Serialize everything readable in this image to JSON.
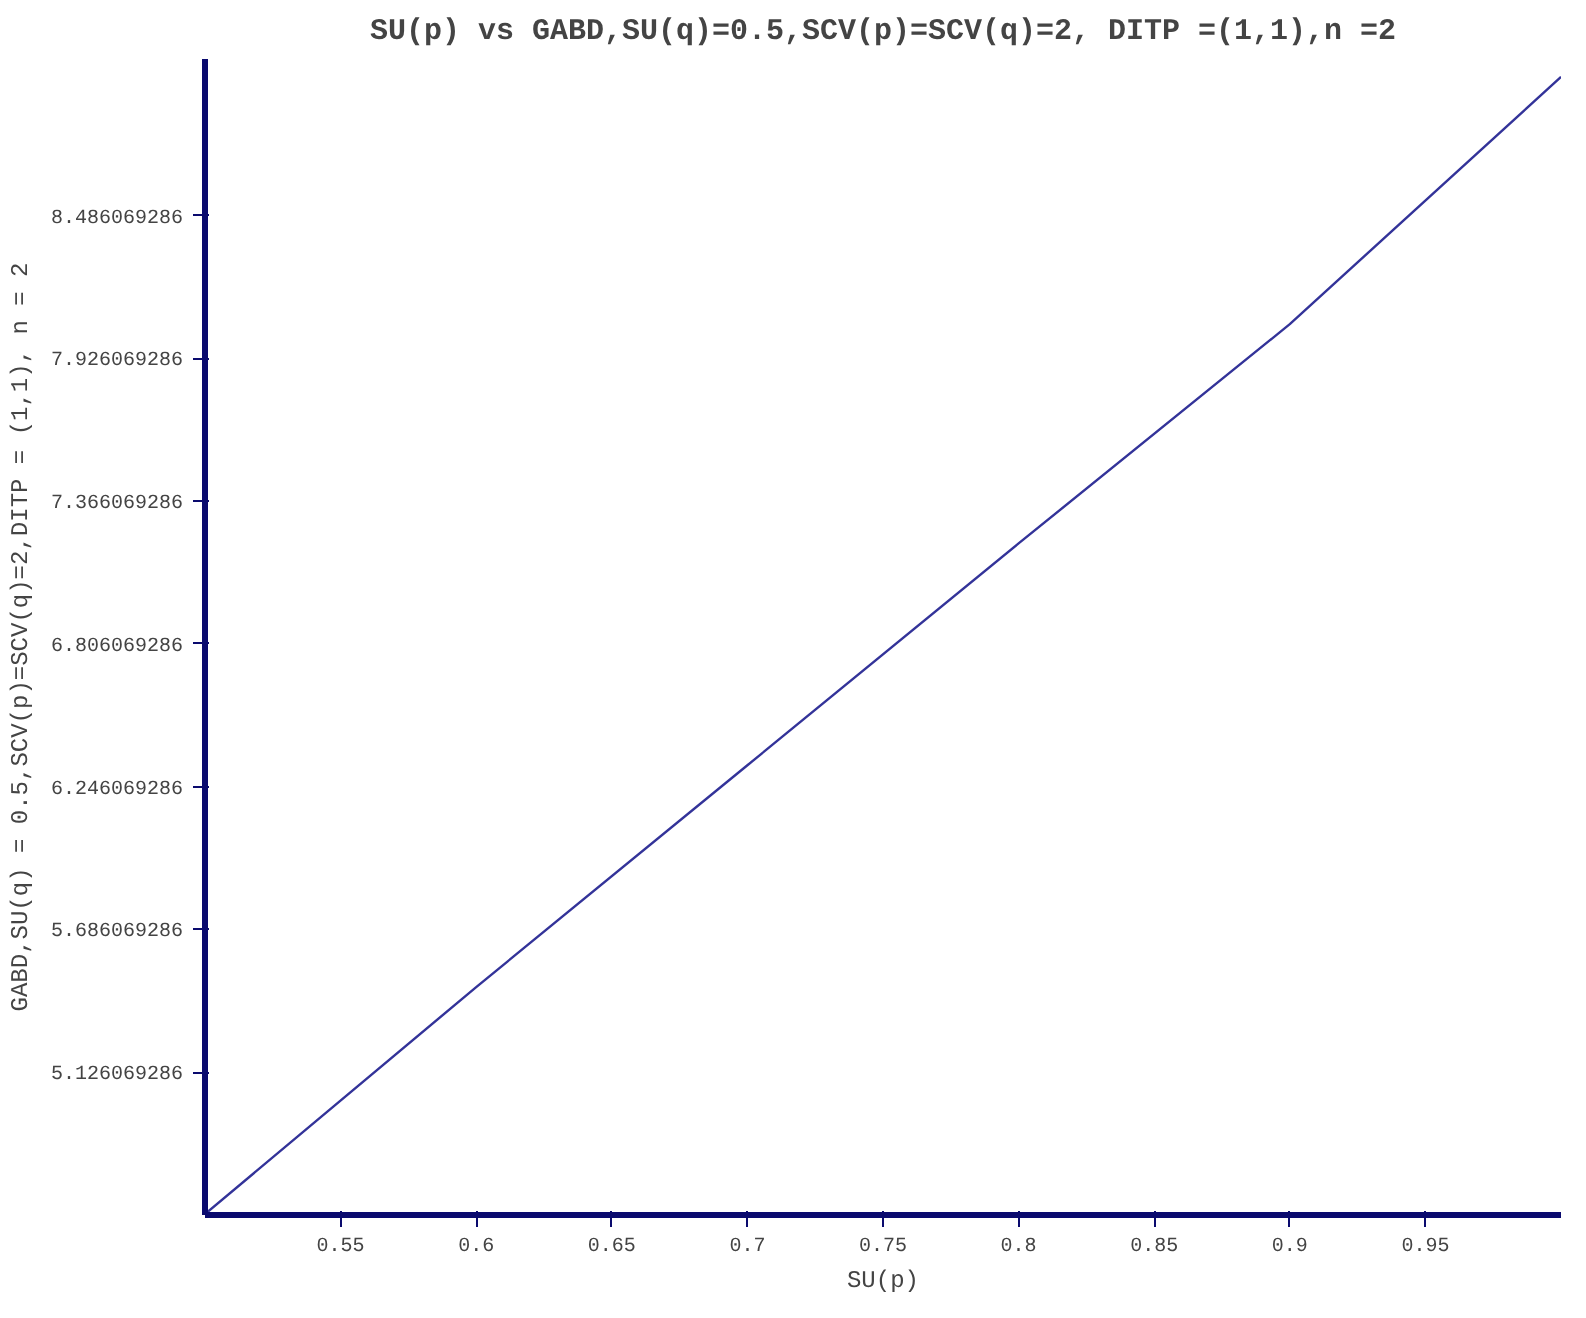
{
  "chart_data": {
    "type": "line",
    "title": "SU(p) vs GABD,SU(q)=0.5,SCV(p)=SCV(q)=2, DITP =(1,1),n =2",
    "xlabel": "SU(p)",
    "ylabel": "GABD,SU(q) = 0.5,SCV(p)=SCV(q)=2,DITP = (1,1), n = 2",
    "x": [
      0.5,
      0.6,
      0.7,
      0.8,
      0.9,
      1.0
    ],
    "series": [
      {
        "color": "#333399",
        "values": [
          4.57,
          5.46,
          6.33,
          7.2,
          8.06,
          9.03
        ]
      }
    ],
    "xlim": [
      0.5,
      1.0
    ],
    "ylim": [
      4.566069286,
      9.1
    ],
    "xticks": [
      0.55,
      0.6,
      0.65,
      0.7,
      0.75,
      0.8,
      0.85,
      0.9,
      0.95
    ],
    "yticks": [
      5.126069286,
      5.686069286,
      6.246069286,
      6.806069286,
      7.366069286,
      7.926069286,
      8.486069286
    ],
    "grid": false
  }
}
